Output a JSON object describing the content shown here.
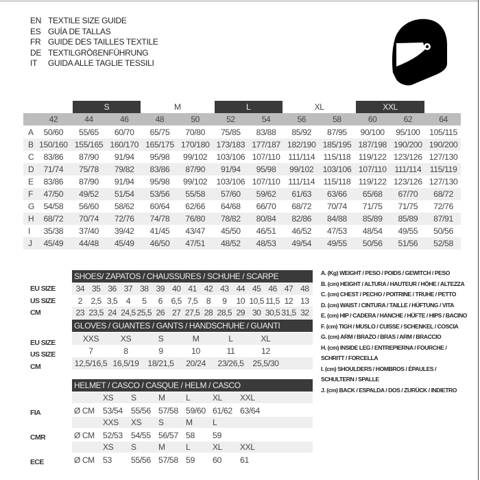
{
  "titles": [
    {
      "code": "EN",
      "text": "TEXTILE SIZE GUIDE"
    },
    {
      "code": "ES",
      "text": "GUÍA DE TALLAS"
    },
    {
      "code": "FR",
      "text": "GUIDE DES TAILLES TEXTILE"
    },
    {
      "code": "DE",
      "text": "TEXTILGRÖßENFÜHRUNG"
    },
    {
      "code": "IT",
      "text": "GUIDA ALLE TAGLIE TESSILI"
    }
  ],
  "icon": "helmet-icon",
  "colors": {
    "dark_band": "#3a3a3a",
    "header_gray": "#bdbdbd",
    "stripe": "#eeeeee"
  },
  "textile": {
    "groups": [
      {
        "label": "S",
        "span": [
          1,
          2
        ],
        "dark": true
      },
      {
        "label": "M",
        "span": [
          3,
          4
        ],
        "dark": false
      },
      {
        "label": "L",
        "span": [
          5,
          6
        ],
        "dark": true
      },
      {
        "label": "XL",
        "span": [
          7,
          8
        ],
        "dark": false
      },
      {
        "label": "XXL",
        "span": [
          9,
          10
        ],
        "dark": true
      }
    ],
    "sizes": [
      "42",
      "44",
      "46",
      "48",
      "50",
      "52",
      "54",
      "56",
      "58",
      "60",
      "62",
      "64"
    ],
    "rows": [
      {
        "label": "A",
        "values": [
          "50/60",
          "55/65",
          "60/70",
          "65/75",
          "70/80",
          "75/85",
          "83/88",
          "85/92",
          "87/95",
          "90/100",
          "95/100",
          "105/115"
        ]
      },
      {
        "label": "B",
        "values": [
          "150/160",
          "155/165",
          "160/170",
          "165/175",
          "170/180",
          "173/183",
          "177/187",
          "182/190",
          "185/195",
          "187/198",
          "190/200",
          "190/200"
        ]
      },
      {
        "label": "C",
        "values": [
          "83/86",
          "87/90",
          "91/94",
          "95/98",
          "99/102",
          "103/106",
          "107/110",
          "111/114",
          "115/118",
          "119/122",
          "123/126",
          "127/130"
        ]
      },
      {
        "label": "D",
        "values": [
          "71/74",
          "75/78",
          "79/82",
          "83/86",
          "87/90",
          "91/94",
          "95/98",
          "99/102",
          "103/106",
          "107/110",
          "111/114",
          "115/119"
        ]
      },
      {
        "label": "E",
        "values": [
          "83/86",
          "87/90",
          "91/94",
          "95/98",
          "99/102",
          "103/106",
          "107/110",
          "111/114",
          "115/118",
          "119/122",
          "123/126",
          "127/130"
        ]
      },
      {
        "label": "F",
        "values": [
          "47/50",
          "49/52",
          "51/54",
          "53/56",
          "55/58",
          "57/60",
          "59/62",
          "61/63",
          "63/66",
          "65/68",
          "67/70",
          "68/72"
        ]
      },
      {
        "label": "G",
        "values": [
          "54/58",
          "56/60",
          "58/62",
          "60/64",
          "62/66",
          "64/68",
          "66/70",
          "68/72",
          "70/74",
          "71/75",
          "71/75",
          "72/76"
        ]
      },
      {
        "label": "H",
        "values": [
          "68/72",
          "70/74",
          "72/76",
          "74/78",
          "76/80",
          "78/82",
          "80/84",
          "82/86",
          "84/88",
          "85/89",
          "85/89",
          "87/91"
        ]
      },
      {
        "label": "I",
        "values": [
          "35/38",
          "37/40",
          "39/42",
          "41/45",
          "43/47",
          "45/50",
          "46/51",
          "46/52",
          "47/53",
          "48/54",
          "49/55",
          "50/56"
        ]
      },
      {
        "label": "J",
        "values": [
          "45/49",
          "44/48",
          "45/49",
          "46/50",
          "47/51",
          "48/52",
          "48/53",
          "49/54",
          "49/55",
          "50/56",
          "51/56",
          "52/58"
        ]
      }
    ]
  },
  "shoes": {
    "title": "SHOES/ ZAPATOS / CHAUSSURES / SCHUHE / SCARPE",
    "rows": [
      {
        "label": "EU SIZE",
        "values": [
          "34",
          "35",
          "36",
          "37",
          "38",
          "39",
          "40",
          "41",
          "42",
          "43",
          "44",
          "45",
          "46",
          "47",
          "48"
        ]
      },
      {
        "label": "US SIZE",
        "values": [
          "2",
          "2,5",
          "3,5",
          "4",
          "5",
          "6",
          "6,5",
          "7,5",
          "8",
          "9",
          "10",
          "10,5",
          "11,5",
          "12",
          "13"
        ]
      },
      {
        "label": "CM",
        "values": [
          "23",
          "23,5",
          "24",
          "24,5",
          "25,5",
          "26",
          "27",
          "27,5",
          "28",
          "28,5",
          "29",
          "30",
          "30,5",
          "31,5",
          "32"
        ]
      }
    ]
  },
  "gloves": {
    "title": "GLOVES / GUANTES / GANTS / HANDSCHUHE / GUANTI",
    "rows": [
      {
        "label": "EU SIZE",
        "values": [
          "XXS",
          "XS",
          "S",
          "M",
          "L",
          "XL"
        ]
      },
      {
        "label": "US SIZE",
        "values": [
          "7",
          "8",
          "9",
          "10",
          "11",
          "12"
        ]
      },
      {
        "label": "CM",
        "values": [
          "12,5/16,5",
          "16,5/19",
          "18/21,5",
          "20/24",
          "23/26,5",
          "25,5/30"
        ]
      }
    ]
  },
  "helmet": {
    "title": "HELMET / CASCO / CASQUE / HELM / CASCO",
    "unit": "Ø CM",
    "standards": [
      {
        "label": "FIA",
        "sizes": [
          "XS",
          "S",
          "M",
          "L",
          "XL",
          "XXL"
        ],
        "values": [
          "53/54",
          "55/56",
          "57/58",
          "59/60",
          "61/62",
          "63/64"
        ]
      },
      {
        "label": "CMR",
        "sizes": [
          "XXS",
          "XS",
          "S",
          "M",
          "L"
        ],
        "values": [
          "52/53",
          "54/55",
          "56/57",
          "58",
          "59"
        ]
      },
      {
        "label": "ECE",
        "sizes": [
          "XS",
          "S",
          "M",
          "L",
          "XL",
          "XXL"
        ],
        "values": [
          "53",
          "55/56",
          "57/58",
          "59",
          "60",
          "61"
        ]
      }
    ]
  },
  "legend": [
    "A. (Kg) WEIGHT / PESO / POIDS / GEWITCH / PESO",
    "B. (cm) HEIGHT / ALTURA / HAUTEUR / HÖHE / ALTEZZA",
    "C. (cm) CHEST / PECHO / POITRINE / TRUHE / PETTO",
    "D. (cm) WAIST / CINTURA / TAILLE / HÜFTUNG / VITA",
    "E. (cm) HIP / CADERA / HANCHE / HÜFTE / HIPS /  BACINO",
    "F.  (cm) TIGH / MUSLO / CUISSE / SCHENKEL / COSCIA",
    "G. (cm) ARM  / BRAZO / BRAS / ARM / BRACCIO",
    "H. (cm) INSIDE LEG / ENTREPIERNA / FOURCHE /",
    "SCHRITT / FORCELLA",
    "I.  (cm) SHOULDERS / HOMBROS / ÉPAULES /",
    "SCHULTERN / SPALLE",
    "J. (cm) BACK / ESPALDA / DOS / ZURÜCK / INDIETRO"
  ]
}
